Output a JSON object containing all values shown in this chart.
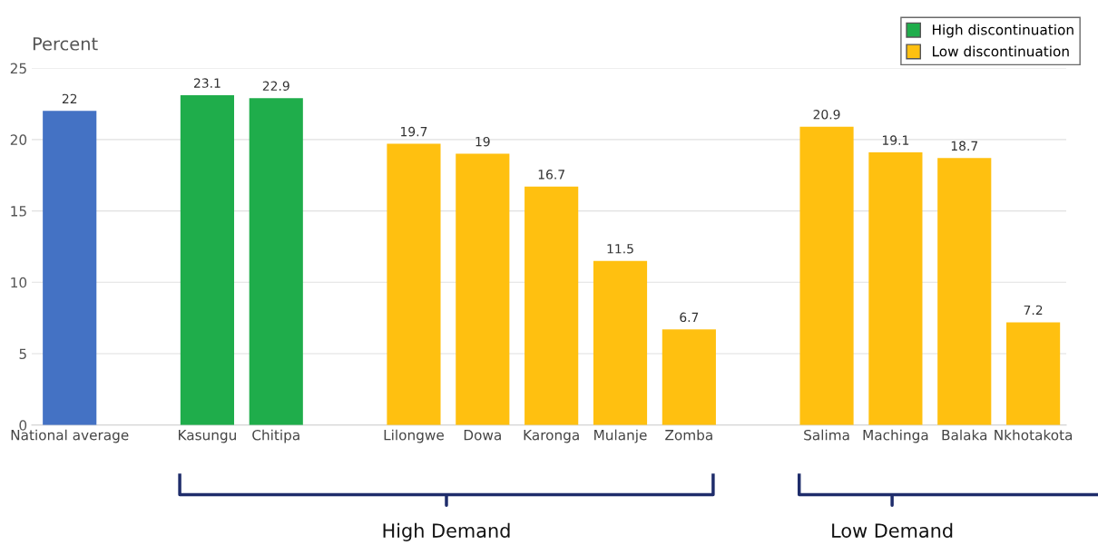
{
  "chart_data": {
    "type": "bar",
    "ylabel": "Percent",
    "categories": [
      "National average",
      null,
      "Kasungu",
      "Chitipa",
      null,
      "Lilongwe",
      "Dowa",
      "Karonga",
      "Mulanje",
      "Zomba",
      null,
      "Salima",
      "Machinga",
      "Balaka",
      "Nkhotakota"
    ],
    "series": [
      {
        "color": "#4472c4",
        "values": [
          22,
          null,
          null,
          null,
          null,
          null,
          null,
          null,
          null,
          null,
          null,
          null,
          null,
          null,
          null
        ]
      },
      {
        "name": "High discontinuation",
        "color": "#1fad4b",
        "values": [
          null,
          null,
          23.1,
          22.9,
          null,
          null,
          null,
          null,
          null,
          null,
          null,
          null,
          null,
          null,
          null
        ]
      },
      {
        "name": "Low discontinuation",
        "color": "#ffc010",
        "values": [
          null,
          null,
          null,
          null,
          null,
          19.7,
          19,
          16.7,
          11.5,
          6.7,
          null,
          20.9,
          19.1,
          18.7,
          7.2
        ]
      }
    ],
    "ylim": [
      0,
      25
    ],
    "yticks": [
      0,
      5,
      10,
      15,
      20,
      25
    ],
    "grid": "y",
    "legend": "top right",
    "data_labels": true,
    "annotations": [
      "High Demand",
      "Low Demand"
    ]
  }
}
